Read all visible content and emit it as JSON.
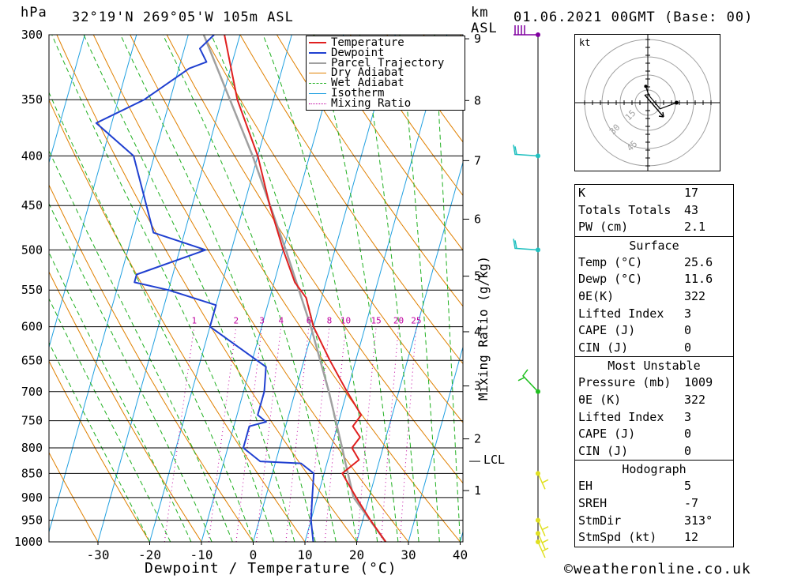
{
  "header": {
    "pressure_unit": "hPa",
    "location": "32°19'N  269°05'W  105m  ASL",
    "height_unit_km": "km",
    "height_unit_asl": "ASL",
    "datetime": "01.06.2021  00GMT  (Base: 00)"
  },
  "axes": {
    "x_label": "Dewpoint / Temperature (°C)",
    "mixing_ratio_label": "Mixing Ratio (g/kg)",
    "lcl_label": "LCL",
    "hodograph_unit": "kt",
    "watermark": "©weatheronline.co.uk"
  },
  "legend": [
    {
      "label": "Temperature",
      "color": "#e02020",
      "style": "solid"
    },
    {
      "label": "Dewpoint",
      "color": "#2040d0",
      "style": "solid"
    },
    {
      "label": "Parcel Trajectory",
      "color": "#a0a0a0",
      "style": "solid"
    },
    {
      "label": "Dry Adiabat",
      "color": "#e08000",
      "style": "solid"
    },
    {
      "label": "Wet Adiabat",
      "color": "#20b020",
      "style": "dashed"
    },
    {
      "label": "Isotherm",
      "color": "#20a0e0",
      "style": "solid"
    },
    {
      "label": "Mixing Ratio",
      "color": "#c000a0",
      "style": "dotted"
    }
  ],
  "indices": {
    "rows": [
      {
        "label": "K",
        "value": "17"
      },
      {
        "label": "Totals Totals",
        "value": "43"
      },
      {
        "label": "PW (cm)",
        "value": "2.1"
      }
    ]
  },
  "surface": {
    "title": "Surface",
    "rows": [
      {
        "label": "Temp (°C)",
        "value": "25.6"
      },
      {
        "label": "Dewp (°C)",
        "value": "11.6"
      },
      {
        "label": "θE(K)",
        "value": "322"
      },
      {
        "label": "Lifted Index",
        "value": "3"
      },
      {
        "label": "CAPE (J)",
        "value": "0"
      },
      {
        "label": "CIN (J)",
        "value": "0"
      }
    ]
  },
  "most_unstable": {
    "title": "Most Unstable",
    "rows": [
      {
        "label": "Pressure (mb)",
        "value": "1009"
      },
      {
        "label": "θE (K)",
        "value": "322"
      },
      {
        "label": "Lifted Index",
        "value": "3"
      },
      {
        "label": "CAPE (J)",
        "value": "0"
      },
      {
        "label": "CIN (J)",
        "value": "0"
      }
    ]
  },
  "hodograph": {
    "title": "Hodograph",
    "rows": [
      {
        "label": "EH",
        "value": "5"
      },
      {
        "label": "SREH",
        "value": "-7"
      },
      {
        "label": "StmDir",
        "value": "313°"
      },
      {
        "label": "StmSpd (kt)",
        "value": "12"
      }
    ],
    "ring_labels": [
      "15",
      "30",
      "45"
    ]
  },
  "chart_data": {
    "type": "skew-t",
    "pressure_levels": [
      300,
      350,
      400,
      450,
      500,
      550,
      600,
      650,
      700,
      750,
      800,
      850,
      900,
      950,
      1000
    ],
    "x_ticks": [
      -30,
      -20,
      -10,
      0,
      10,
      20,
      30,
      40
    ],
    "height_ticks_km": [
      1,
      2,
      3,
      4,
      5,
      6,
      7,
      8,
      9
    ],
    "mixing_ratio_labels": [
      1,
      2,
      3,
      4,
      6,
      8,
      10,
      15,
      20,
      25
    ],
    "xlim": [
      -40,
      40
    ],
    "plim": [
      1000,
      300
    ],
    "temperature": [
      [
        1000,
        25.6
      ],
      [
        950,
        21.5
      ],
      [
        900,
        17.5
      ],
      [
        850,
        13.5
      ],
      [
        823,
        16
      ],
      [
        800,
        14
      ],
      [
        780,
        15
      ],
      [
        760,
        13
      ],
      [
        740,
        14
      ],
      [
        700,
        10
      ],
      [
        650,
        5
      ],
      [
        600,
        0
      ],
      [
        560,
        -3
      ],
      [
        540,
        -6
      ],
      [
        500,
        -10
      ],
      [
        450,
        -15
      ],
      [
        400,
        -20
      ],
      [
        350,
        -27
      ],
      [
        300,
        -33
      ]
    ],
    "dewpoint": [
      [
        1000,
        11.6
      ],
      [
        950,
        10
      ],
      [
        900,
        9
      ],
      [
        850,
        8
      ],
      [
        830,
        5
      ],
      [
        826,
        -3
      ],
      [
        800,
        -7
      ],
      [
        760,
        -7
      ],
      [
        752,
        -4
      ],
      [
        740,
        -6
      ],
      [
        700,
        -6
      ],
      [
        660,
        -7
      ],
      [
        600,
        -20
      ],
      [
        570,
        -20
      ],
      [
        550,
        -30
      ],
      [
        540,
        -37
      ],
      [
        530,
        -37
      ],
      [
        500,
        -25
      ],
      [
        480,
        -36
      ],
      [
        400,
        -44
      ],
      [
        370,
        -53
      ],
      [
        350,
        -45
      ],
      [
        325,
        -38
      ],
      [
        320,
        -35
      ],
      [
        310,
        -37
      ],
      [
        300,
        -35
      ]
    ],
    "parcel": [
      [
        1000,
        25.6
      ],
      [
        900,
        17
      ],
      [
        826,
        13.4
      ],
      [
        800,
        12.1
      ],
      [
        700,
        6.5
      ],
      [
        600,
        -0.5
      ],
      [
        500,
        -9.5
      ],
      [
        400,
        -21
      ],
      [
        300,
        -37
      ]
    ],
    "wind_barbs_p": [
      1000,
      980,
      950,
      850,
      700,
      500,
      400,
      300
    ],
    "hodograph_trace": [
      [
        -1,
        8
      ],
      [
        0,
        5
      ],
      [
        1,
        3
      ],
      [
        6,
        -3
      ],
      [
        14,
        0
      ]
    ]
  }
}
